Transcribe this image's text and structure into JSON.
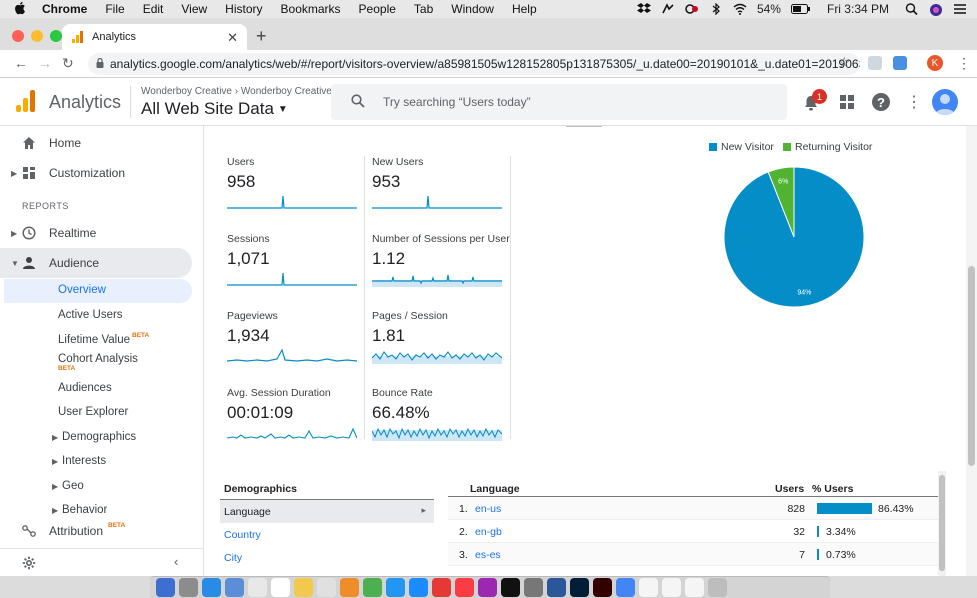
{
  "menubar": {
    "app": "Chrome",
    "items": [
      "File",
      "Edit",
      "View",
      "History",
      "Bookmarks",
      "People",
      "Tab",
      "Window",
      "Help"
    ],
    "battery": "54%",
    "clock": "Fri 3:34 PM"
  },
  "browser": {
    "tab_title": "Analytics",
    "url": "analytics.google.com/analytics/web/#/report/visitors-overview/a85981505w128152805p131875305/_u.date00=20190101&_u.date01=20190630",
    "profile_initial": "K"
  },
  "header": {
    "product": "Analytics",
    "breadcrumb_account": "Wonderboy Creative",
    "breadcrumb_property": "Wonderboy Creative",
    "view_name": "All Web Site Data",
    "search_placeholder": "Try searching “Users today”",
    "notifications_count": "1"
  },
  "sidebar": {
    "home": "Home",
    "customization": "Customization",
    "reports_heading": "REPORTS",
    "realtime": "Realtime",
    "audience": "Audience",
    "audience_items": {
      "overview": "Overview",
      "active_users": "Active Users",
      "lifetime_value": "Lifetime Value",
      "cohort_analysis": "Cohort Analysis",
      "audiences": "Audiences",
      "user_explorer": "User Explorer",
      "demographics": "Demographics",
      "interests": "Interests",
      "geo": "Geo",
      "behavior": "Behavior"
    },
    "beta": "BETA",
    "attribution": "Attribution"
  },
  "metrics": [
    {
      "label": "Users",
      "value": "958"
    },
    {
      "label": "New Users",
      "value": "953"
    },
    {
      "label": "Sessions",
      "value": "1,071"
    },
    {
      "label": "Number of Sessions per User",
      "value": "1.12"
    },
    {
      "label": "Pageviews",
      "value": "1,934"
    },
    {
      "label": "Pages / Session",
      "value": "1.81"
    },
    {
      "label": "Avg. Session Duration",
      "value": "00:01:09"
    },
    {
      "label": "Bounce Rate",
      "value": "66.48%"
    }
  ],
  "chart_data": {
    "type": "pie",
    "series": [
      {
        "name": "New Visitor",
        "value": 94,
        "label": "94%",
        "color": "#058dc7"
      },
      {
        "name": "Returning Visitor",
        "value": 6,
        "label": "6%",
        "color": "#50b432"
      }
    ]
  },
  "demographics": {
    "heading": "Demographics",
    "rows": [
      "Language",
      "Country",
      "City"
    ]
  },
  "language_table": {
    "col_language": "Language",
    "col_users": "Users",
    "col_pct": "% Users",
    "rows": [
      {
        "rank": "1.",
        "name": "en-us",
        "users": "828",
        "pct": "86.43%",
        "fraction": 0.8643
      },
      {
        "rank": "2.",
        "name": "en-gb",
        "users": "32",
        "pct": "3.34%",
        "fraction": 0.0334
      },
      {
        "rank": "3.",
        "name": "es-es",
        "users": "7",
        "pct": "0.73%",
        "fraction": 0.0073
      }
    ]
  }
}
